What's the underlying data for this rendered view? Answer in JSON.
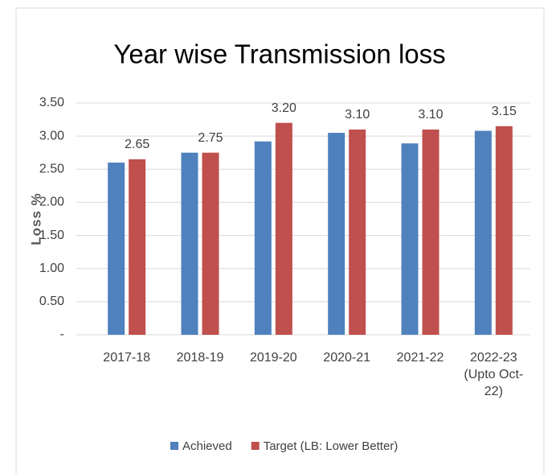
{
  "chart_data": {
    "type": "bar",
    "title": "Year wise Transmission loss",
    "y_label": "Loss %",
    "categories": [
      "2017-18",
      "2018-19",
      "2019-20",
      "2020-21",
      "2021-22",
      "2022-23 (Upto Oct-22)"
    ],
    "series": [
      {
        "name": "Achieved",
        "color": "#4f81bd",
        "values": [
          2.6,
          2.75,
          2.92,
          3.05,
          2.89,
          3.08
        ]
      },
      {
        "name": "Target (LB: Lower Better)",
        "color": "#c0504d",
        "values": [
          2.65,
          2.75,
          3.2,
          3.1,
          3.1,
          3.15
        ],
        "value_labels": [
          "2.65",
          "2.75",
          "3.20",
          "3.10",
          "3.10",
          "3.15"
        ]
      }
    ],
    "ylim": [
      0,
      3.5
    ],
    "yticks": [
      {
        "value": 0,
        "label": "-"
      },
      {
        "value": 0.5,
        "label": "0.50"
      },
      {
        "value": 1,
        "label": "1.00"
      },
      {
        "value": 1.5,
        "label": "1.50"
      },
      {
        "value": 2,
        "label": "2.00"
      },
      {
        "value": 2.5,
        "label": "2.50"
      },
      {
        "value": 3,
        "label": "3.00"
      },
      {
        "value": 3.5,
        "label": "3.50"
      }
    ],
    "grid": true,
    "legend": "bottom"
  }
}
